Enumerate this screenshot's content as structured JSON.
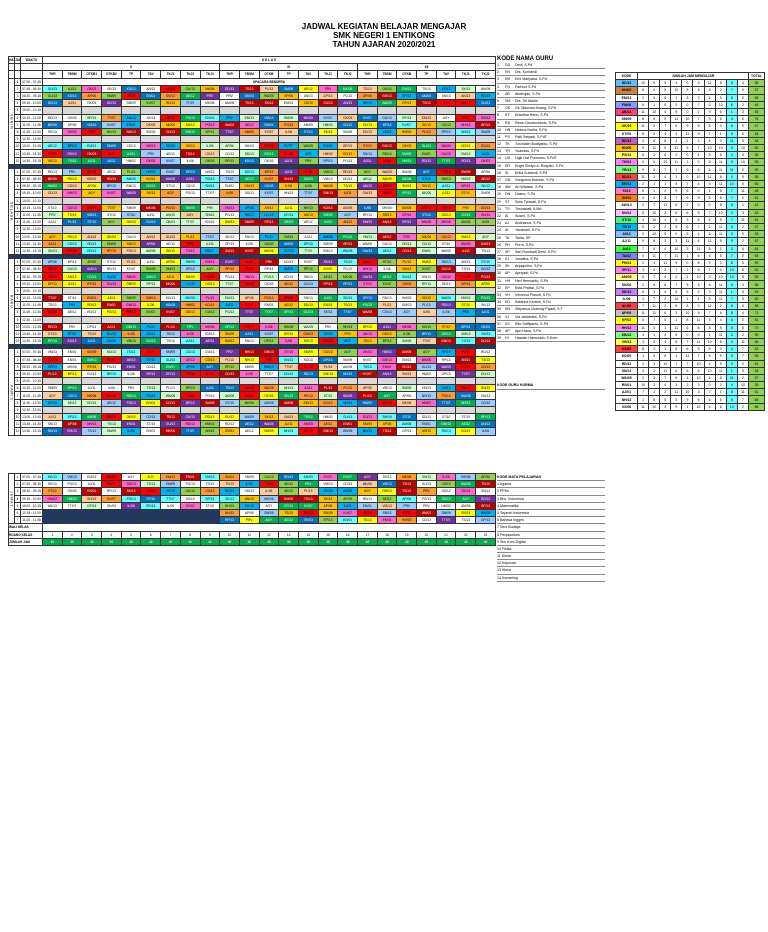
{
  "title": {
    "line1": "JADWAL KEGIATAN BELAJAR MENGAJAR",
    "line2": "SMK NEGERI 1 ENTIKONG",
    "line3": "TAHUN AJARAN 2020/2021"
  },
  "labels": {
    "hari": "HARI",
    "jam_ke": "JAM KE",
    "waktu": "WAKTU",
    "kelas": "K E L A S",
    "kelas_x": "X",
    "kelas_xi": "XI",
    "kelas_xii": "XII",
    "upacara": "UPACARA BENDERA",
    "kode_nama_guru": "KODE NAMA GURU",
    "kode": "KODE",
    "jumlah_jam": "JUMLAH JAM MENGAJAR",
    "total": "TOTAL",
    "tanggal_bulan": "TANGGAL BULAN",
    "kode_guru_kurma": "KODE GURU KURMA",
    "kode_mata_pelajaran": "KODE MATA PELAJARAN",
    "wali_kelas": "WALI KELAS",
    "ruang_kelas": "RUANG KELAS",
    "jumlah_jam_row": "JUMLAH JAM"
  },
  "class_columns": [
    "TKR",
    "TBSM",
    "OTKB1",
    "OTKB2",
    "TP",
    "TAV",
    "TKJ1",
    "TKJ2",
    "TKJ3",
    "TKR",
    "TBSM",
    "OTKB",
    "TP",
    "TAV",
    "TKJ1",
    "TKJ2",
    "TKR",
    "TBSM",
    "OTKB",
    "TP",
    "TAV",
    "TKJ1",
    "TKJ2"
  ],
  "days": [
    {
      "name": "SENIN",
      "times": [
        "07.00 - 07.45",
        "07.45 - 08.30",
        "08.30 - 09.15",
        "09.15 - 10.00",
        "10.00 - 10.15",
        "10.15 - 11.00",
        "11.00 - 11.45",
        "11.45 - 12.30",
        "12.30 - 13.00",
        "13.00 - 13.45",
        "13.45 - 14.30",
        "14.30 - 15.15"
      ]
    },
    {
      "name": "SELASA",
      "times": [
        "07.00 - 07.45",
        "07.45 - 08.30",
        "08.30 - 09.15",
        "09.15 - 10.00",
        "10.00 - 10.15",
        "10.15 - 11.00",
        "11.00 - 11.45",
        "11.45 - 12.30",
        "12.30 - 13.00",
        "13.00 - 13.45",
        "13.45 - 14.30",
        "14.30 - 15.15"
      ]
    },
    {
      "name": "RABU",
      "times": [
        "07.00 - 07.45",
        "07.45 - 08.30",
        "08.30 - 09.15",
        "09.15 - 10.00",
        "10.00 - 10.15",
        "10.15 - 11.00",
        "11.00 - 11.45",
        "11.45 - 12.30",
        "12.30 - 13.00",
        "13.00 - 13.45",
        "13.45 - 14.30",
        "14.30 - 15.15"
      ]
    },
    {
      "name": "KAMIS",
      "times": [
        "07.00 - 07.45",
        "07.45 - 08.30",
        "08.30 - 09.15",
        "09.15 - 10.00",
        "10.00 - 10.15",
        "10.15 - 11.00",
        "11.00 - 11.45",
        "11.45 - 12.30",
        "12.30 - 13.00",
        "13.00 - 13.45",
        "13.45 - 14.30",
        "14.30 - 15.15"
      ]
    },
    {
      "name": "JUMAT",
      "times": [
        "07.00 - 07.45",
        "07.45 - 08.30",
        "08.30 - 09.15",
        "09.15 - 10.00",
        "10.00 - 10.15",
        "10.15 - 11.00",
        "11.00 - 11.45",
        "11.45 - 12.30",
        "12.30 - 13.00",
        "13.00 - 13.45",
        "13.45 - 14.30",
        "14.30 - 15.15"
      ]
    }
  ],
  "cell_codes": [
    "RD/13",
    "EN/01",
    "SK/13",
    "AJ/11",
    "SM/09",
    "TS/13",
    "PG/13",
    "AM/05",
    "WA/05",
    "AN/13",
    "HM/02",
    "BP/13",
    "IL/06",
    "NH/13",
    "PRV",
    "OK/03",
    "GU/13",
    "VM/13",
    "EM/13",
    "DD/13",
    "KD/13",
    "AGY",
    "MK/06",
    "SN/13",
    "TT/07",
    "AP/06",
    "RP/13",
    "ST/10",
    "CD/13",
    "DP/13",
    "KV/07",
    "PL/13",
    "AE/12",
    "GM/13"
  ],
  "teachers": [
    [
      "1",
      "DD",
      "Dedi, S.Pd"
    ],
    [
      "2",
      "KN",
      "Drs. Kurnandi"
    ],
    [
      "3",
      "EM",
      "Emi Mariyana, S.Pd"
    ],
    [
      "4",
      "FN",
      "Farhuni S.Pd"
    ],
    [
      "5",
      "AB",
      "Abdirojan, S.Pd"
    ],
    [
      "6",
      "SM",
      "Drs. Sri Martin"
    ],
    [
      "7",
      "OK",
      "Ok Oktovian Anang, S.Pd"
    ],
    [
      "8",
      "KT",
      "Krisstina Henri, S.Pd"
    ],
    [
      "9",
      "RD",
      "Rindu Derotschiodo, S.Pd"
    ],
    [
      "10",
      "HN",
      "Helena Nurfia, S.Pd"
    ],
    [
      "11",
      "PS",
      "Patil Setyadi, S.PdT"
    ],
    [
      "12",
      "TK",
      "Tusmiatin Budiyanto, S.Pd"
    ],
    [
      "13",
      "YR",
      "Yuandas, S.Pd"
    ],
    [
      "14",
      "UD",
      "Ugik Dwi Purnomo, S.PdT"
    ],
    [
      "15",
      "ER",
      "Engel Bortyo A. Rosyiko, S.Pd"
    ],
    [
      "16",
      "SI",
      "Erika Subandi, S.Pd"
    ],
    [
      "17",
      "GN",
      "Gregorius Notolan, S.Pd"
    ],
    [
      "18",
      "AW",
      "Ari Wibawo, S.Pd"
    ],
    [
      "19",
      "DN",
      "Dasno, S.Pd"
    ],
    [
      "20",
      "ST",
      "Sulis Tyowati, S.Pd"
    ],
    [
      "21",
      "TS",
      "Trisnawati, A.Md"
    ],
    [
      "22",
      "AI",
      "Susen, S.Pd"
    ],
    [
      "23",
      "AJ",
      "Andrianus, S.Pd"
    ],
    [
      "24",
      "AI",
      "Yandriani, S.Pd"
    ],
    [
      "25",
      "TA",
      "Tarita, SP"
    ],
    [
      "26",
      "PH",
      "Purnt, S.Pd"
    ],
    [
      "27",
      "SP",
      "Sari Rumbadi Dewi, S.Pd"
    ],
    [
      "28",
      "EJ",
      "Junaliha, S.Pd"
    ],
    [
      "29",
      "SK",
      "Anjagutino, S.Pd"
    ],
    [
      "30",
      "AP",
      "Apriyadi, S.Pd"
    ],
    [
      "31",
      "HH",
      "Heri Hermanto, S.Pd"
    ],
    [
      "32",
      "EP",
      "Esta Pratiwi, S.Pd"
    ],
    [
      "33",
      "VH",
      "Veronica Plonzti, S.Pd"
    ],
    [
      "34",
      "KD",
      "Katarina Kedrim, S.Pd"
    ],
    [
      "35",
      "SN",
      "Stepanus Nolendy Piyadi, S.T"
    ],
    [
      "36",
      "VJ",
      "Via Jatiabdari, S.Pd"
    ],
    [
      "37",
      "KS",
      "Rito Saffiyanto, S.Pd"
    ],
    [
      "38",
      "AP",
      "Apri Hana, S.Pd"
    ],
    [
      "39",
      "HI",
      "Hasdah Hamsidah, S.Kom"
    ]
  ],
  "kode_list": [
    [
      "DD/13",
      "#60c0ff"
    ],
    [
      "KN/02",
      "#d08040"
    ],
    [
      "EM/13",
      "#ffffff"
    ],
    [
      "FN/06",
      "#80a0ff"
    ],
    [
      "AB/14",
      "#ff4080"
    ],
    [
      "SM/09",
      "#ffffff"
    ],
    [
      "OK/03",
      "#ffff00"
    ],
    [
      "KT/05",
      "#ffffff"
    ],
    [
      "RD/13",
      "#c060c0"
    ],
    [
      "HN/08",
      "#ffc000"
    ],
    [
      "PS/13",
      "#ffff60"
    ],
    [
      "TK/04",
      "#ff80ff"
    ],
    [
      "YR/13",
      "#80ff80"
    ],
    [
      "UD/13",
      "#ff4040"
    ],
    [
      "ER/13",
      "#00b0f0"
    ],
    [
      "SI/13",
      "#ff80c0"
    ],
    [
      "GN/01",
      "#ff8000"
    ],
    [
      "AW/13",
      "#ffffff"
    ],
    [
      "DN/13",
      "#ffc0ff"
    ],
    [
      "ST/10",
      "#40ff80"
    ],
    [
      "TS/13",
      "#00b0f0"
    ],
    [
      "AI/13",
      "#80c0ff"
    ],
    [
      "AJ/11",
      "#ffffff"
    ],
    [
      "AI/12",
      "#40ff40"
    ],
    [
      "TA/02",
      "#8080ff"
    ],
    [
      "PH/13",
      "#ffff00"
    ],
    [
      "SP/11",
      "#ff80ff"
    ],
    [
      "AM/05",
      "#ffff80"
    ],
    [
      "SK/08",
      "#ffffff"
    ],
    [
      "SK/13",
      "#c080ff"
    ],
    [
      "IL/06",
      "#ffffff"
    ],
    [
      "AL/06",
      "#ff4040"
    ],
    [
      "AP/06",
      "#c0c0c0"
    ],
    [
      "KF/02",
      "#ffff00"
    ],
    [
      "HH/13",
      "#ff80ff"
    ],
    [
      "KB/13",
      "#80ff80"
    ],
    [
      "VH/13",
      "#ffff40"
    ],
    [
      "KS/05",
      "#ff4040"
    ],
    [
      "KD/05",
      "#ffffff"
    ],
    [
      "RD/13",
      "#ffffff"
    ],
    [
      "SN/13",
      "#ffffff"
    ],
    [
      "WA/05",
      "#ffffff"
    ],
    [
      "RS/01",
      "#ffffff"
    ],
    [
      "AJ/01",
      "#ffffff"
    ],
    [
      "NH/13",
      "#ffffff"
    ],
    [
      "XX/08",
      "#ffffff"
    ]
  ],
  "mapel": [
    [
      "1",
      "Agama"
    ],
    [
      "2",
      "PPKn"
    ],
    [
      "3",
      "Bhs. Indonesia"
    ],
    [
      "4",
      "Matematika"
    ],
    [
      "5",
      "Sejarah Indonesia"
    ],
    [
      "6",
      "Bahasa Inggris"
    ],
    [
      "7",
      "Seni Budaya"
    ],
    [
      "8",
      "Penjasorkes"
    ],
    [
      "9",
      "Sim Kom Digital"
    ],
    [
      "10",
      "Fisika"
    ],
    [
      "11",
      "Kimia"
    ],
    [
      "12",
      "Kejuruan"
    ],
    [
      "13",
      "Kimia"
    ],
    [
      "14",
      "Konseling"
    ]
  ],
  "wali": {
    "ruang": [
      "1",
      "2",
      "3",
      "4",
      "5",
      "6",
      "7",
      "8",
      "9",
      "10",
      "11",
      "12",
      "13",
      "14",
      "15",
      "16",
      "17",
      "18",
      "19",
      "20",
      "21",
      "22",
      "23"
    ],
    "jumlah": [
      "46",
      "46",
      "46",
      "46",
      "46",
      "46",
      "46",
      "46",
      "46",
      "48",
      "48",
      "48",
      "48",
      "48",
      "48",
      "48",
      "48",
      "48",
      "48",
      "48",
      "48",
      "48",
      "48"
    ]
  },
  "palette": [
    "#c00000",
    "#ff0000",
    "#ffc000",
    "#ffff00",
    "#92d050",
    "#00b050",
    "#00b0f0",
    "#0070c0",
    "#7030a0",
    "#ff66cc",
    "#66ffff",
    "#ff9933",
    "#99ccff",
    "#ffffff",
    "#ffffff",
    "#ffffff",
    "#ccffcc",
    "#ffcc99"
  ]
}
